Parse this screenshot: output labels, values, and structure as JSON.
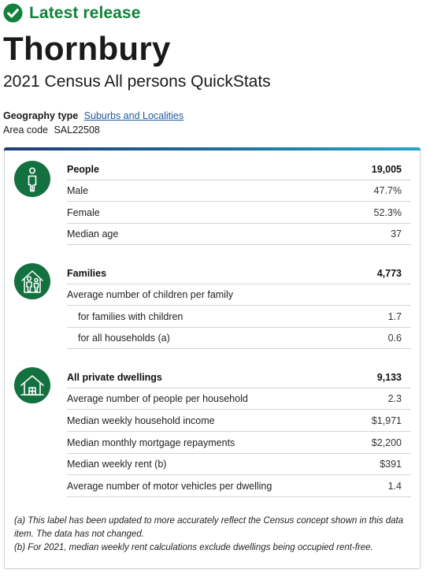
{
  "release": {
    "label": "Latest release",
    "color": "#12813b"
  },
  "page": {
    "title": "Thornbury",
    "subtitle": "2021 Census All persons QuickStats"
  },
  "geography": {
    "type_label": "Geography type",
    "type_value": "Suburbs and Localities",
    "code_label": "Area code",
    "code_value": "SAL22508"
  },
  "sections": {
    "people": {
      "icon": "person-icon",
      "rows": [
        {
          "label": "People",
          "value": "19,005"
        },
        {
          "label": "Male",
          "value": "47.7%"
        },
        {
          "label": "Female",
          "value": "52.3%"
        },
        {
          "label": "Median age",
          "value": "37"
        }
      ]
    },
    "families": {
      "icon": "family-icon",
      "rows": [
        {
          "label": "Families",
          "value": "4,773"
        },
        {
          "label": "Average number of children per family",
          "value": ""
        },
        {
          "label": "for families with children",
          "value": "1.7"
        },
        {
          "label": "for all households (a)",
          "value": "0.6"
        }
      ]
    },
    "dwellings": {
      "icon": "house-icon",
      "rows": [
        {
          "label": "All private dwellings",
          "value": "9,133"
        },
        {
          "label": "Average number of people per household",
          "value": "2.3"
        },
        {
          "label": "Median weekly household income",
          "value": "$1,971"
        },
        {
          "label": "Median monthly mortgage repayments",
          "value": "$2,200"
        },
        {
          "label": "Median weekly rent (b)",
          "value": "$391"
        },
        {
          "label": "Average number of motor vehicles per dwelling",
          "value": "1.4"
        }
      ]
    }
  },
  "notes": {
    "a": "(a) This label has been updated to more accurately reflect the Census concept shown in this data item. The data has not changed.",
    "b": "(b) For 2021, median weekly rent calculations exclude dwellings being occupied rent-free."
  },
  "colors": {
    "accent_green": "#13703f",
    "link": "#1f5a9a"
  }
}
